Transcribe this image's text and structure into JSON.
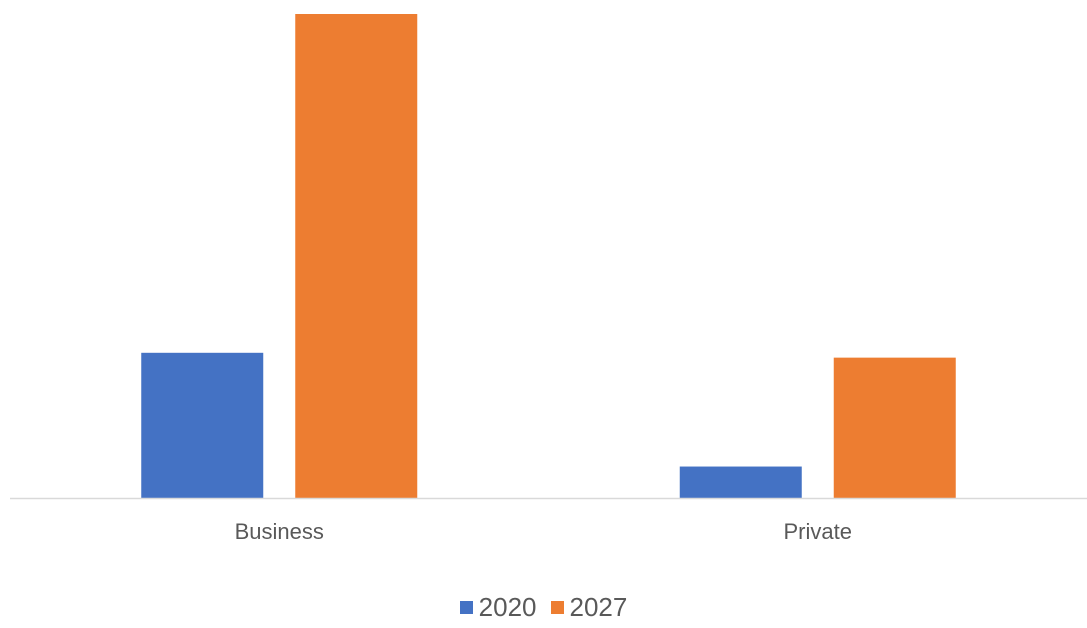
{
  "chart_data": {
    "type": "bar",
    "categories": [
      "Business",
      "Private"
    ],
    "series": [
      {
        "name": "2020",
        "values": [
          30,
          6.5
        ],
        "color": "#4472C4"
      },
      {
        "name": "2027",
        "values": [
          100,
          29
        ],
        "color": "#ED7D31"
      }
    ],
    "title": "",
    "xlabel": "",
    "ylabel": "",
    "ylim": [
      0,
      100
    ],
    "grid": false,
    "legend_position": "bottom",
    "axis_color": "#D9D9D9",
    "label_color": "#595959"
  }
}
